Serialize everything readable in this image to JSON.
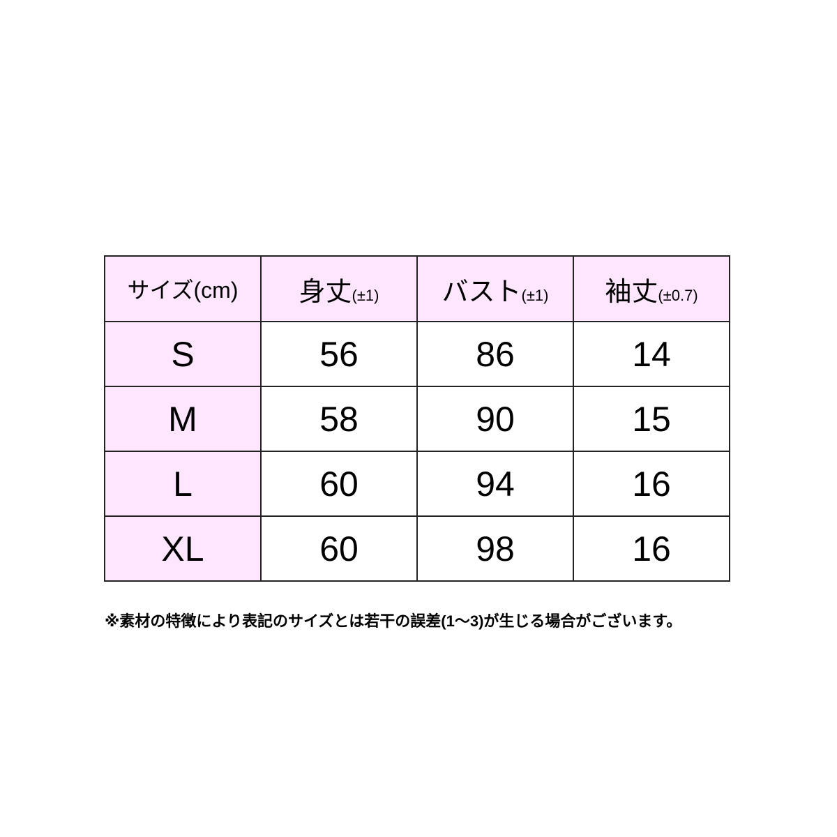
{
  "table": {
    "headers": [
      {
        "main": "サイズ(cm)",
        "sub": ""
      },
      {
        "main": "身丈",
        "sub": "(±1)"
      },
      {
        "main": "バスト",
        "sub": "(±1)"
      },
      {
        "main": "袖丈",
        "sub": "(±0.7)"
      }
    ],
    "rows": [
      [
        "S",
        "56",
        "86",
        "14"
      ],
      [
        "M",
        "58",
        "90",
        "15"
      ],
      [
        "L",
        "60",
        "94",
        "16"
      ],
      [
        "XL",
        "60",
        "98",
        "16"
      ]
    ]
  },
  "note": "※素材の特徴により表記のサイズとは若干の誤差(1～3)が生じる場合がございます。",
  "colors": {
    "header_bg": "#ffe6ff",
    "border": "#222222"
  }
}
